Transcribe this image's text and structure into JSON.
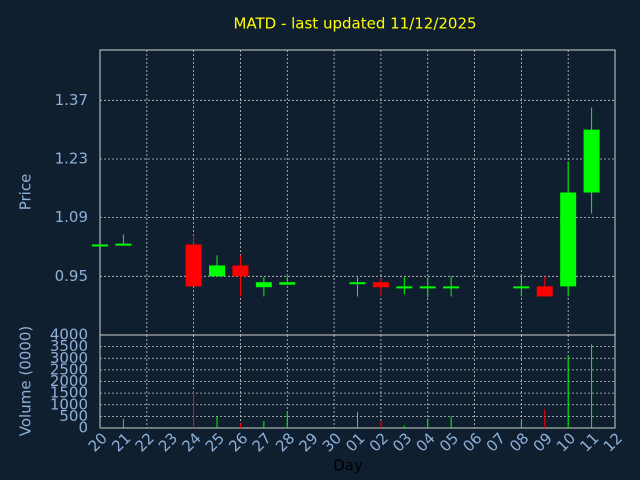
{
  "chart_data": [
    {
      "type": "candlestick",
      "title": "MATD - last updated 11/12/2025",
      "ylabel": "Price",
      "open": [
        1.025,
        1.025,
        null,
        null,
        1.026,
        0.95,
        0.976,
        0.924,
        0.93,
        null,
        null,
        0.932,
        0.936,
        0.922,
        0.922,
        0.922,
        null,
        null,
        0.922,
        0.926,
        0.926,
        1.15,
        null
      ],
      "high": [
        1.026,
        1.05,
        null,
        null,
        1.048,
        1.0,
        1.0,
        0.948,
        0.95,
        null,
        null,
        0.948,
        0.945,
        0.948,
        0.948,
        0.95,
        null,
        null,
        0.948,
        0.95,
        1.224,
        1.353,
        null
      ],
      "low": [
        1.025,
        1.025,
        null,
        null,
        0.926,
        0.95,
        0.902,
        0.902,
        0.93,
        null,
        null,
        0.902,
        0.902,
        0.907,
        0.9,
        0.902,
        null,
        null,
        0.902,
        0.902,
        0.902,
        1.1,
        null
      ],
      "close": [
        1.026,
        1.028,
        null,
        null,
        0.926,
        0.976,
        0.95,
        0.936,
        0.936,
        null,
        null,
        0.936,
        0.924,
        0.926,
        0.926,
        0.926,
        null,
        null,
        0.926,
        0.902,
        1.15,
        1.3,
        null
      ],
      "up_color": "#00ff00",
      "down_color": "#ff0000",
      "ylim": [
        0.81,
        1.49
      ],
      "yticks": [
        0.95,
        1.09,
        1.23,
        1.37
      ],
      "grid": true
    },
    {
      "type": "bar",
      "ylabel": "Volume (0000)",
      "xlabel": "Day",
      "categories": [
        "20",
        "21",
        "22",
        "23",
        "24",
        "25",
        "26",
        "27",
        "28",
        "29",
        "30",
        "01",
        "02",
        "03",
        "04",
        "05",
        "06",
        "07",
        "08",
        "09",
        "10",
        "11",
        "12"
      ],
      "values": [
        50,
        400,
        null,
        null,
        1600,
        500,
        200,
        300,
        700,
        null,
        null,
        700,
        300,
        100,
        400,
        500,
        null,
        null,
        300,
        800,
        3100,
        3600,
        null
      ],
      "ylim": [
        0,
        4000
      ],
      "yticks": [
        0,
        500,
        1000,
        1500,
        2000,
        2500,
        3000,
        3500,
        4000
      ],
      "grid": true
    }
  ]
}
